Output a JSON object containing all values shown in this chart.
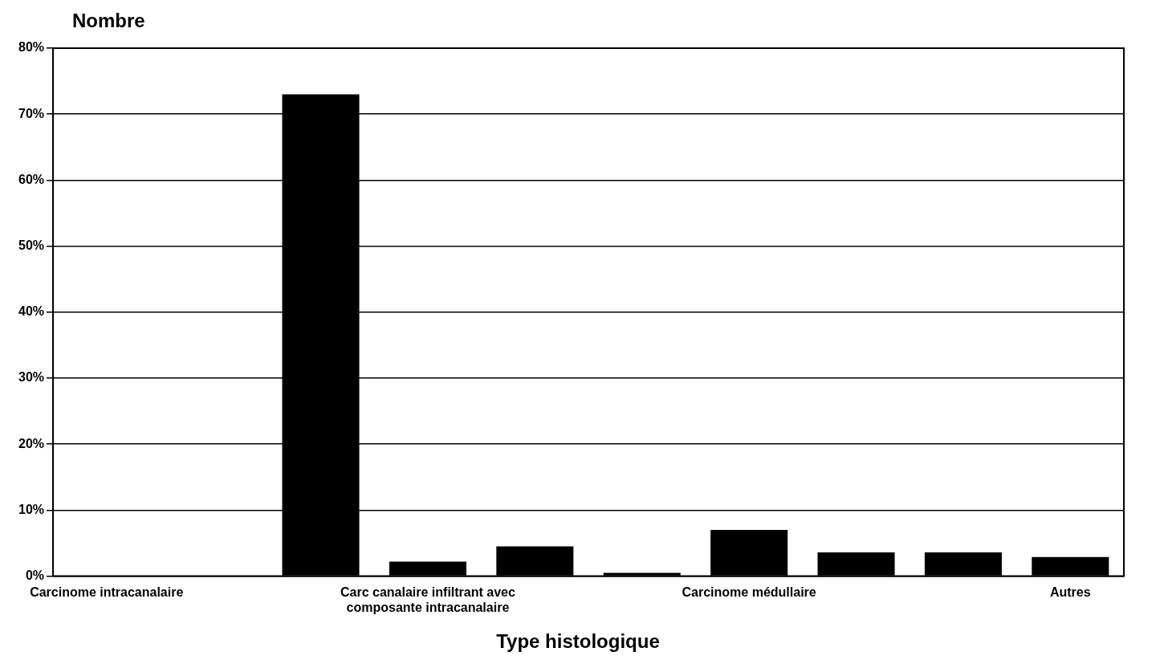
{
  "chart_data": {
    "type": "bar",
    "ylabel": "Nombre",
    "xlabel": "Type histologique",
    "categories": [
      "Carcinome intracanalaire",
      null,
      null,
      "Carc canalaire infiltrant avec composante intracanalaire",
      null,
      null,
      "Carcinome médullaire",
      null,
      null,
      "Autres"
    ],
    "values": [
      0,
      0,
      73,
      2.2,
      4.5,
      0.5,
      7,
      3.6,
      3.6,
      2.9
    ],
    "color": "#000000",
    "ylim": [
      0,
      80
    ],
    "yticks": [
      {
        "value": 0,
        "label": "0%"
      },
      {
        "value": 10,
        "label": "10%"
      },
      {
        "value": 20,
        "label": "20%"
      },
      {
        "value": 30,
        "label": "30%"
      },
      {
        "value": 40,
        "label": "40%"
      },
      {
        "value": 50,
        "label": "50%"
      },
      {
        "value": 60,
        "label": "60%"
      },
      {
        "value": 70,
        "label": "70%"
      },
      {
        "value": 80,
        "label": "80%"
      }
    ],
    "grid": "y"
  }
}
